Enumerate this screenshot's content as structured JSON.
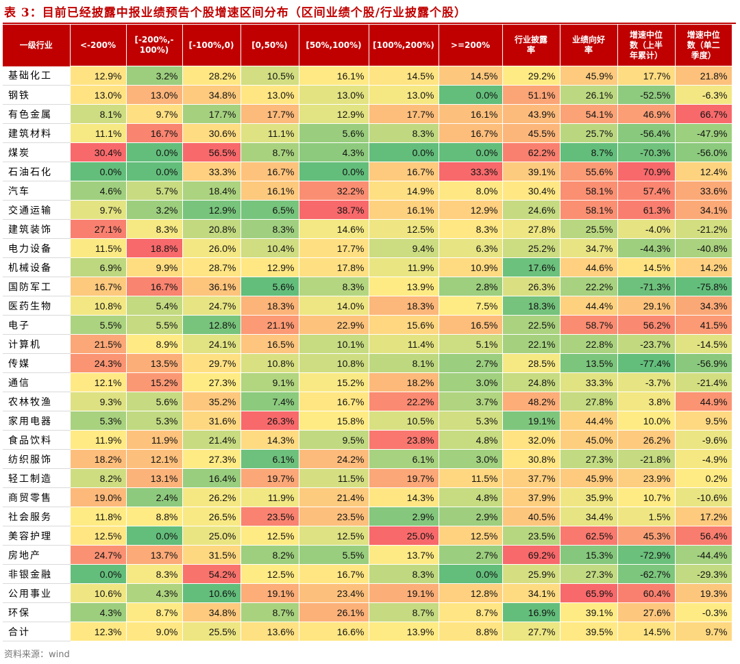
{
  "title": "表 3：目前已经披露中报业绩预告个股增速区间分布（区间业绩个股/行业披露个股）",
  "source": "资料来源：wind",
  "headers": [
    "一级行业",
    "<-200%",
    "[-200%,-\n100%)",
    "[-100%,0)",
    "[0,50%)",
    "[50%,100%)",
    "[100%,200%)",
    ">=200%",
    "行业披露\n率",
    "业绩向好\n率",
    "增速中位\n数（上半\n年累计）",
    "增速中位\n数（单二\n季度）"
  ],
  "colors": {
    "header_bg": "#c00000",
    "scale_low": "#63be7b",
    "scale_mid": "#ffeb84",
    "scale_high": "#f8696b"
  },
  "rows": [
    [
      "基础化工",
      "12.9%",
      "3.2%",
      "28.2%",
      "10.5%",
      "16.1%",
      "14.5%",
      "14.5%",
      "29.2%",
      "45.9%",
      "17.7%",
      "21.8%"
    ],
    [
      "钢铁",
      "13.0%",
      "13.0%",
      "34.8%",
      "13.0%",
      "13.0%",
      "13.0%",
      "0.0%",
      "51.1%",
      "26.1%",
      "-52.5%",
      "-6.3%"
    ],
    [
      "有色金属",
      "8.1%",
      "9.7%",
      "17.7%",
      "17.7%",
      "12.9%",
      "17.7%",
      "16.1%",
      "43.9%",
      "54.1%",
      "46.9%",
      "66.7%"
    ],
    [
      "建筑材料",
      "11.1%",
      "16.7%",
      "30.6%",
      "11.1%",
      "5.6%",
      "8.3%",
      "16.7%",
      "45.5%",
      "25.7%",
      "-56.4%",
      "-47.9%"
    ],
    [
      "煤炭",
      "30.4%",
      "0.0%",
      "56.5%",
      "8.7%",
      "4.3%",
      "0.0%",
      "0.0%",
      "62.2%",
      "8.7%",
      "-70.3%",
      "-56.0%"
    ],
    [
      "石油石化",
      "0.0%",
      "0.0%",
      "33.3%",
      "16.7%",
      "0.0%",
      "16.7%",
      "33.3%",
      "39.1%",
      "55.6%",
      "70.9%",
      "12.4%"
    ],
    [
      "汽车",
      "4.6%",
      "5.7%",
      "18.4%",
      "16.1%",
      "32.2%",
      "14.9%",
      "8.0%",
      "30.4%",
      "58.1%",
      "57.4%",
      "33.6%"
    ],
    [
      "交通运输",
      "9.7%",
      "3.2%",
      "12.9%",
      "6.5%",
      "38.7%",
      "16.1%",
      "12.9%",
      "24.6%",
      "58.1%",
      "61.3%",
      "34.1%"
    ],
    [
      "建筑装饰",
      "27.1%",
      "8.3%",
      "20.8%",
      "8.3%",
      "14.6%",
      "12.5%",
      "8.3%",
      "27.8%",
      "25.5%",
      "-4.0%",
      "-21.2%"
    ],
    [
      "电力设备",
      "11.5%",
      "18.8%",
      "26.0%",
      "10.4%",
      "17.7%",
      "9.4%",
      "6.3%",
      "25.2%",
      "34.7%",
      "-44.3%",
      "-40.8%"
    ],
    [
      "机械设备",
      "6.9%",
      "9.9%",
      "28.7%",
      "12.9%",
      "17.8%",
      "11.9%",
      "10.9%",
      "17.6%",
      "44.6%",
      "14.5%",
      "14.2%"
    ],
    [
      "国防军工",
      "16.7%",
      "16.7%",
      "36.1%",
      "5.6%",
      "8.3%",
      "13.9%",
      "2.8%",
      "26.3%",
      "22.2%",
      "-71.3%",
      "-75.8%"
    ],
    [
      "医药生物",
      "10.8%",
      "5.4%",
      "24.7%",
      "18.3%",
      "14.0%",
      "18.3%",
      "7.5%",
      "18.3%",
      "44.4%",
      "29.1%",
      "34.3%"
    ],
    [
      "电子",
      "5.5%",
      "5.5%",
      "12.8%",
      "21.1%",
      "22.9%",
      "15.6%",
      "16.5%",
      "22.5%",
      "58.7%",
      "56.2%",
      "41.5%"
    ],
    [
      "计算机",
      "21.5%",
      "8.9%",
      "24.1%",
      "16.5%",
      "10.1%",
      "11.4%",
      "5.1%",
      "22.1%",
      "22.8%",
      "-23.7%",
      "-14.5%"
    ],
    [
      "传媒",
      "24.3%",
      "13.5%",
      "29.7%",
      "10.8%",
      "10.8%",
      "8.1%",
      "2.7%",
      "28.5%",
      "13.5%",
      "-77.4%",
      "-56.9%"
    ],
    [
      "通信",
      "12.1%",
      "15.2%",
      "27.3%",
      "9.1%",
      "15.2%",
      "18.2%",
      "3.0%",
      "24.8%",
      "33.3%",
      "-3.7%",
      "-21.4%"
    ],
    [
      "农林牧渔",
      "9.3%",
      "5.6%",
      "35.2%",
      "7.4%",
      "16.7%",
      "22.2%",
      "3.7%",
      "48.2%",
      "27.8%",
      "3.8%",
      "44.9%"
    ],
    [
      "家用电器",
      "5.3%",
      "5.3%",
      "31.6%",
      "26.3%",
      "15.8%",
      "10.5%",
      "5.3%",
      "19.1%",
      "44.4%",
      "10.0%",
      "9.5%"
    ],
    [
      "食品饮料",
      "11.9%",
      "11.9%",
      "21.4%",
      "14.3%",
      "9.5%",
      "23.8%",
      "4.8%",
      "32.0%",
      "45.0%",
      "26.2%",
      "-9.6%"
    ],
    [
      "纺织服饰",
      "18.2%",
      "12.1%",
      "27.3%",
      "6.1%",
      "24.2%",
      "6.1%",
      "3.0%",
      "30.8%",
      "27.3%",
      "-21.8%",
      "-4.9%"
    ],
    [
      "轻工制造",
      "8.2%",
      "13.1%",
      "16.4%",
      "19.7%",
      "11.5%",
      "19.7%",
      "11.5%",
      "37.7%",
      "45.9%",
      "23.9%",
      "0.2%"
    ],
    [
      "商贸零售",
      "19.0%",
      "2.4%",
      "26.2%",
      "11.9%",
      "21.4%",
      "14.3%",
      "4.8%",
      "37.9%",
      "35.9%",
      "10.7%",
      "-10.6%"
    ],
    [
      "社会服务",
      "11.8%",
      "8.8%",
      "26.5%",
      "23.5%",
      "23.5%",
      "2.9%",
      "2.9%",
      "40.5%",
      "34.4%",
      "1.5%",
      "17.2%"
    ],
    [
      "美容护理",
      "12.5%",
      "0.0%",
      "25.0%",
      "12.5%",
      "12.5%",
      "25.0%",
      "12.5%",
      "23.5%",
      "62.5%",
      "45.3%",
      "56.4%"
    ],
    [
      "房地产",
      "24.7%",
      "13.7%",
      "31.5%",
      "8.2%",
      "5.5%",
      "13.7%",
      "2.7%",
      "69.2%",
      "15.3%",
      "-72.9%",
      "-44.4%"
    ],
    [
      "非银金融",
      "0.0%",
      "8.3%",
      "54.2%",
      "12.5%",
      "16.7%",
      "8.3%",
      "0.0%",
      "25.9%",
      "27.3%",
      "-62.7%",
      "-29.3%"
    ],
    [
      "公用事业",
      "10.6%",
      "4.3%",
      "10.6%",
      "19.1%",
      "23.4%",
      "19.1%",
      "12.8%",
      "34.1%",
      "65.9%",
      "60.4%",
      "19.3%"
    ],
    [
      "环保",
      "4.3%",
      "8.7%",
      "34.8%",
      "8.7%",
      "26.1%",
      "8.7%",
      "8.7%",
      "16.9%",
      "39.1%",
      "27.6%",
      "-0.3%"
    ],
    [
      "合计",
      "12.3%",
      "9.0%",
      "25.5%",
      "13.6%",
      "16.6%",
      "13.9%",
      "8.8%",
      "27.7%",
      "39.5%",
      "14.5%",
      "9.7%"
    ]
  ]
}
